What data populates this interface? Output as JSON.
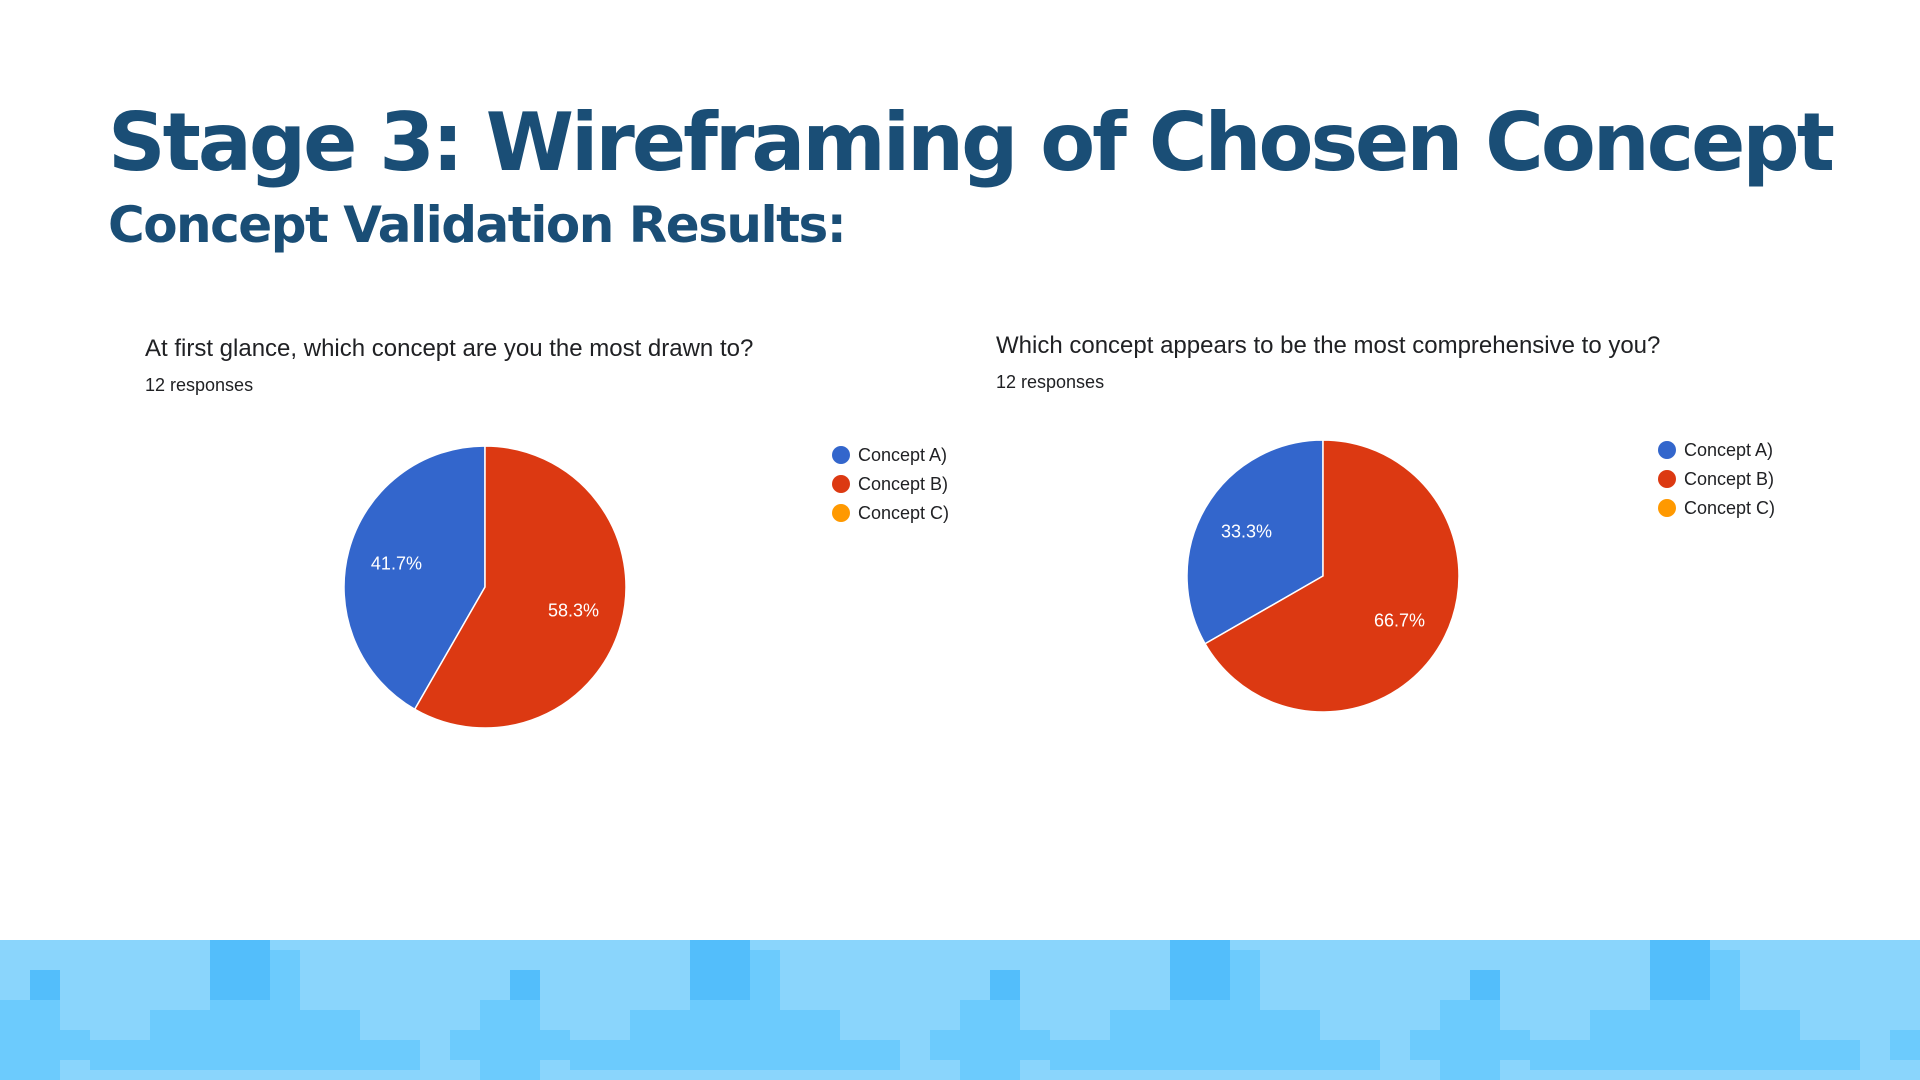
{
  "slide": {
    "title": "Stage 3: Wireframing of Chosen Concept",
    "subtitle": "Concept Validation Results:"
  },
  "colors": {
    "title": "#1a4e76",
    "concept_a": "#3366cc",
    "concept_b": "#dc3912",
    "concept_c": "#ff9900",
    "band_light": "#8ad5fc",
    "band_mid": "#6ccbfd",
    "band_dark": "#53befb"
  },
  "chart_data": [
    {
      "type": "pie",
      "title": "At first glance, which concept are you the most drawn to?",
      "subtitle": "12 responses",
      "categories": [
        "Concept A)",
        "Concept B)",
        "Concept C)"
      ],
      "values": [
        41.7,
        58.3,
        0
      ],
      "labels": [
        "41.7%",
        "58.3%",
        ""
      ],
      "legend_position": "right"
    },
    {
      "type": "pie",
      "title": "Which concept appears to be the most comprehensive to you?",
      "subtitle": "12 responses",
      "categories": [
        "Concept A)",
        "Concept B)",
        "Concept C)"
      ],
      "values": [
        33.3,
        66.7,
        0
      ],
      "labels": [
        "33.3%",
        "66.7%",
        ""
      ],
      "legend_position": "right"
    }
  ]
}
